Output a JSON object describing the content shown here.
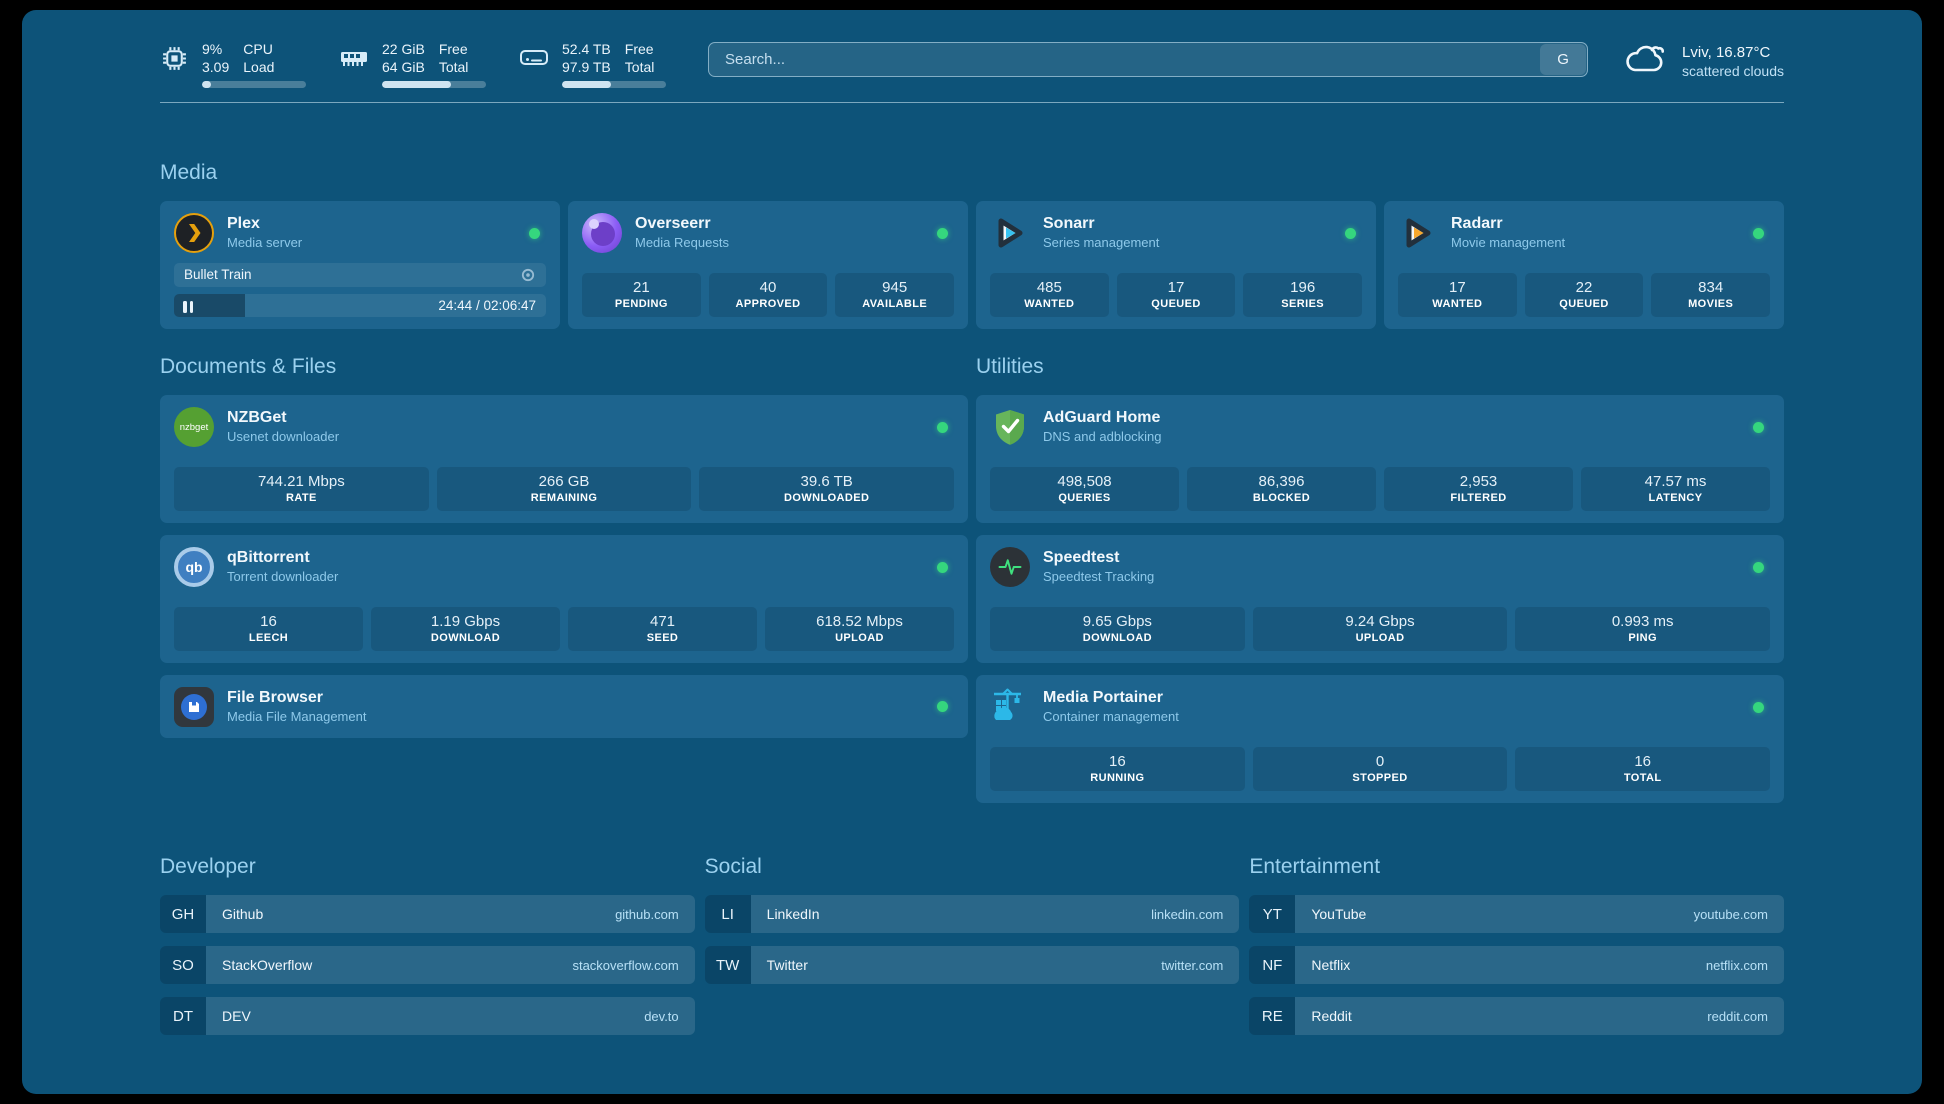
{
  "colors": {
    "background": "#0d5379",
    "card": "#1d648e",
    "status_online": "#35d67e",
    "heading": "#9bd1ef",
    "plex_amber": "#e5a00d",
    "sonarr_blue": "#37c3f1",
    "radarr_orange": "#f7a82d",
    "portainer_blue": "#2cb8e8"
  },
  "system": {
    "cpu": {
      "primary": "9%",
      "secondary": "3.09",
      "label_primary": "CPU",
      "label_secondary": "Load",
      "progress_pct": 9
    },
    "memory": {
      "primary": "22 GiB",
      "secondary": "64 GiB",
      "label_primary": "Free",
      "label_secondary": "Total",
      "progress_pct": 66
    },
    "disk": {
      "primary": "52.4 TB",
      "secondary": "97.9 TB",
      "label_primary": "Free",
      "label_secondary": "Total",
      "progress_pct": 47
    }
  },
  "search": {
    "placeholder": "Search...",
    "engine": "G"
  },
  "weather": {
    "summary": "Lviv, 16.87°C",
    "description": "scattered clouds"
  },
  "sections": {
    "media": "Media",
    "documents": "Documents & Files",
    "utilities": "Utilities",
    "developer": "Developer",
    "social": "Social",
    "entertainment": "Entertainment"
  },
  "apps": {
    "plex": {
      "name": "Plex",
      "description": "Media server",
      "status": "online",
      "player": {
        "title": "Bullet Train",
        "time": "24:44 / 02:06:47",
        "progress_pct": 19
      }
    },
    "overseerr": {
      "name": "Overseerr",
      "description": "Media Requests",
      "status": "online",
      "stats": [
        {
          "value": "21",
          "label": "PENDING"
        },
        {
          "value": "40",
          "label": "APPROVED"
        },
        {
          "value": "945",
          "label": "AVAILABLE"
        }
      ]
    },
    "sonarr": {
      "name": "Sonarr",
      "description": "Series management",
      "status": "online",
      "stats": [
        {
          "value": "485",
          "label": "WANTED"
        },
        {
          "value": "17",
          "label": "QUEUED"
        },
        {
          "value": "196",
          "label": "SERIES"
        }
      ]
    },
    "radarr": {
      "name": "Radarr",
      "description": "Movie management",
      "status": "online",
      "stats": [
        {
          "value": "17",
          "label": "WANTED"
        },
        {
          "value": "22",
          "label": "QUEUED"
        },
        {
          "value": "834",
          "label": "MOVIES"
        }
      ]
    },
    "nzbget": {
      "name": "NZBGet",
      "description": "Usenet downloader",
      "status": "online",
      "icon_text": "nzbget",
      "stats": [
        {
          "value": "744.21 Mbps",
          "label": "RATE"
        },
        {
          "value": "266 GB",
          "label": "REMAINING"
        },
        {
          "value": "39.6 TB",
          "label": "DOWNLOADED"
        }
      ]
    },
    "qbittorrent": {
      "name": "qBittorrent",
      "description": "Torrent downloader",
      "status": "online",
      "icon_text": "qb",
      "stats": [
        {
          "value": "16",
          "label": "LEECH"
        },
        {
          "value": "1.19 Gbps",
          "label": "DOWNLOAD"
        },
        {
          "value": "471",
          "label": "SEED"
        },
        {
          "value": "618.52 Mbps",
          "label": "UPLOAD"
        }
      ]
    },
    "filebrowser": {
      "name": "File Browser",
      "description": "Media File Management",
      "status": "online"
    },
    "adguard": {
      "name": "AdGuard Home",
      "description": "DNS and adblocking",
      "status": "online",
      "stats": [
        {
          "value": "498,508",
          "label": "QUERIES"
        },
        {
          "value": "86,396",
          "label": "BLOCKED"
        },
        {
          "value": "2,953",
          "label": "FILTERED"
        },
        {
          "value": "47.57 ms",
          "label": "LATENCY"
        }
      ]
    },
    "speedtest": {
      "name": "Speedtest",
      "description": "Speedtest Tracking",
      "status": "online",
      "stats": [
        {
          "value": "9.65 Gbps",
          "label": "DOWNLOAD"
        },
        {
          "value": "9.24 Gbps",
          "label": "UPLOAD"
        },
        {
          "value": "0.993 ms",
          "label": "PING"
        }
      ]
    },
    "portainer": {
      "name": "Media Portainer",
      "description": "Container management",
      "status": "online",
      "stats": [
        {
          "value": "16",
          "label": "RUNNING"
        },
        {
          "value": "0",
          "label": "STOPPED"
        },
        {
          "value": "16",
          "label": "TOTAL"
        }
      ]
    }
  },
  "bookmarks": {
    "developer": [
      {
        "abbr": "GH",
        "name": "Github",
        "url": "github.com"
      },
      {
        "abbr": "SO",
        "name": "StackOverflow",
        "url": "stackoverflow.com"
      },
      {
        "abbr": "DT",
        "name": "DEV",
        "url": "dev.to"
      }
    ],
    "social": [
      {
        "abbr": "LI",
        "name": "LinkedIn",
        "url": "linkedin.com"
      },
      {
        "abbr": "TW",
        "name": "Twitter",
        "url": "twitter.com"
      }
    ],
    "entertainment": [
      {
        "abbr": "YT",
        "name": "YouTube",
        "url": "youtube.com"
      },
      {
        "abbr": "NF",
        "name": "Netflix",
        "url": "netflix.com"
      },
      {
        "abbr": "RE",
        "name": "Reddit",
        "url": "reddit.com"
      }
    ]
  }
}
